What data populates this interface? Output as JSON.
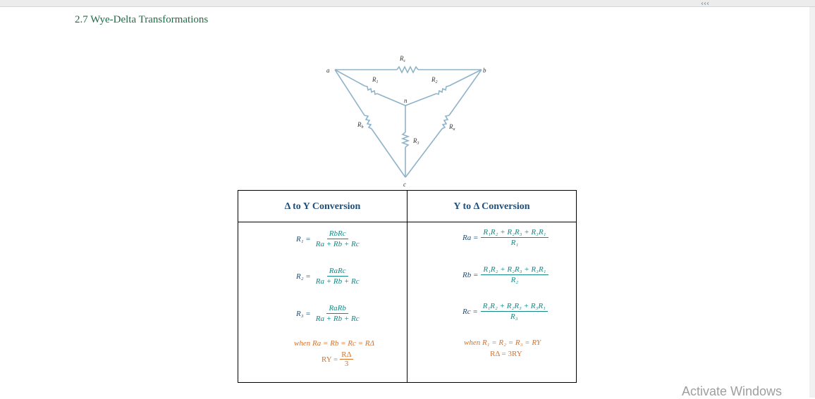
{
  "heading": "2.7 Wye-Delta Transformations",
  "corner_mark": "‹‹‹",
  "circuit": {
    "node_a": "a",
    "node_b": "b",
    "node_c": "c",
    "node_n": "n",
    "labels": {
      "Rc": "R_c",
      "R1": "R_1",
      "R2": "R_2",
      "R3": "R_3",
      "Rb": "R_b",
      "Ra": "R_a"
    }
  },
  "table": {
    "left_header": "Δ to Y Conversion",
    "right_header": "Y to Δ Conversion",
    "delta_to_y": [
      {
        "lhs": "R₁ =",
        "num": "RbRc",
        "den": "Ra + Rb + Rc"
      },
      {
        "lhs": "R₂ =",
        "num": "RaRc",
        "den": "Ra + Rb + Rc"
      },
      {
        "lhs": "R₃ =",
        "num": "RaRb",
        "den": "Ra + Rb + Rc"
      }
    ],
    "y_to_delta": [
      {
        "lhs": "Ra =",
        "num": "R₁R₂ + R₂R₃ + R₃R₁",
        "den": "R₁"
      },
      {
        "lhs": "Rb =",
        "num": "R₁R₂ + R₂R₃ + R₃R₁",
        "den": "R₂"
      },
      {
        "lhs": "Rc =",
        "num": "R₁R₂ + R₂R₃ + R₃R₁",
        "den": "R₃"
      }
    ],
    "left_special": {
      "when": "when Ra = Rb = Rc = RΔ",
      "lhs": "RY =",
      "num": "RΔ",
      "den": "3"
    },
    "right_special": {
      "when": "when R₁ = R₂ = R₃ = RY",
      "result": "RΔ = 3RY"
    }
  },
  "watermark": "Activate Windows"
}
